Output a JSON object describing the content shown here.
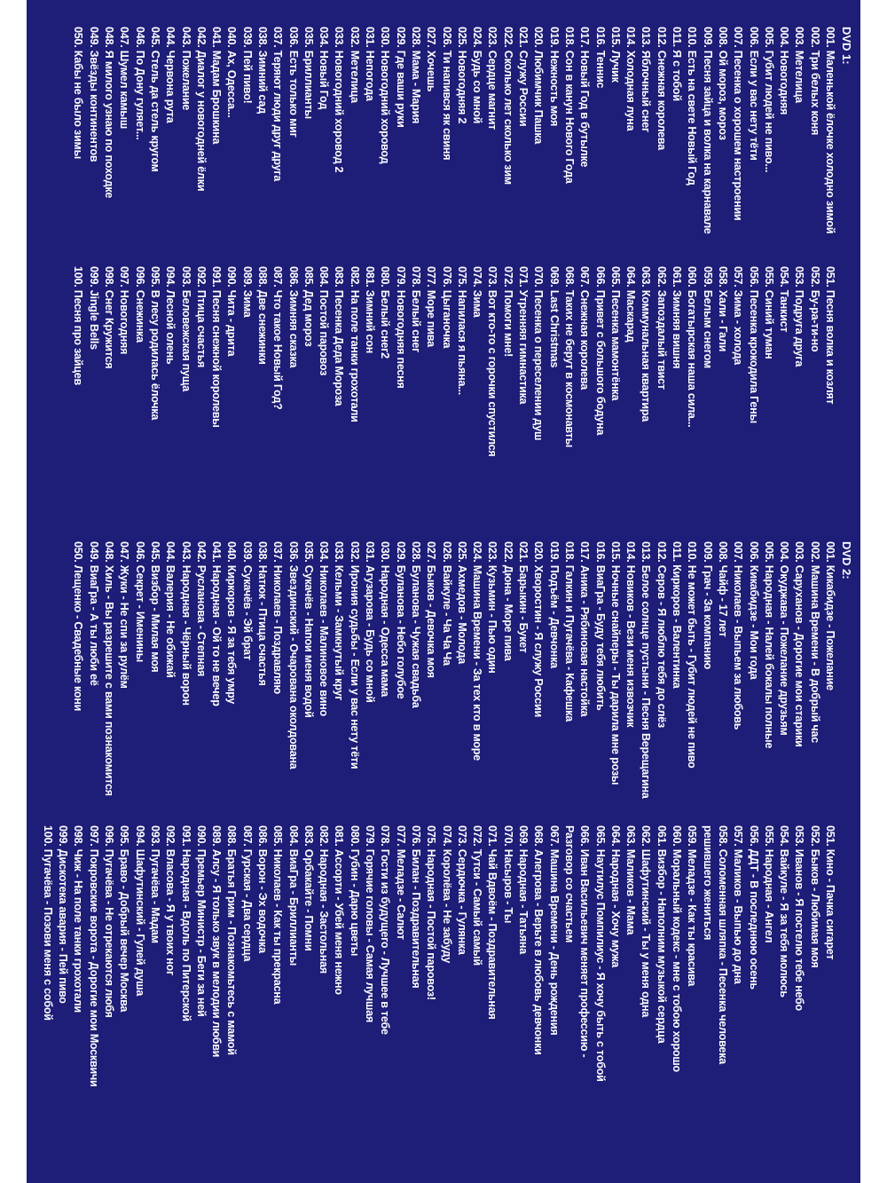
{
  "dvds": [
    {
      "title": "DVD 1:",
      "columns": [
        [
          "001. Маленькой ёлочке холодно зимой",
          "002. Три белых коня",
          "003. Метелица",
          "004. Новогодняя",
          "005. Губит людей не пиво...",
          "006. Если у вас нету тёти",
          "007. Песенка о хорошем настроении",
          "008. Ой мороз, мороз",
          "009. Песня зайца и волка на карнавале",
          "010. Есть на свете Новый Год",
          "011. Я с тобой",
          "012. Снежная королева",
          "013. Яблочный снег",
          "014. Холодная луна",
          "015. Лучик",
          "016. Теннис",
          "017. Новый Год в бутылке",
          "018. Сон в канун Нового Года",
          "019. Нежность моя",
          "020. Любимчик Пашка",
          "021. Служу России",
          "022. Сколько лет сколько зим",
          "023. Сердце магнит",
          "024. Будь со мной",
          "025. Новогодняя 2",
          "026. Ти напився як свиня",
          "027. Хочешь",
          "028. Мама - Мария",
          "029. Где ваши руки",
          "030. Новогодний хоровод",
          "031. Непогода",
          "032. Метелица",
          "033. Новогодний хоровод 2",
          "034. Новый Год",
          "035. Бриллианты",
          "036. Есть только миг",
          "037. Теряют люди друг друга",
          "038. Зимний сад",
          "039. Пей пиво!",
          "040. Ах, Одесса...",
          "041. Мадам Брошкина",
          "042. Диалог у новогодней ёлки",
          "043. Пожелание",
          "044. Червона рута",
          "045. Стель да стель кругом",
          "046. По Дону гуляет...",
          "047. Шумел камыш",
          "048. Я милого узнаю по походке",
          "049. Звёзды континентов",
          "050. Кабы не было зимы"
        ],
        [
          "051. Песня волка и козлят",
          "052. Бу-ра-ти-но",
          "053. Подруга друга",
          "054. Танкист",
          "055. Синий туман",
          "056. Песенка крокодила Гены",
          "057. Зима - холода",
          "058. Хали - Гали",
          "059. Белым снегом",
          "060. Богатырская наша сила...",
          "061. Зимняя вишня",
          "062. Запоздалый твист",
          "063. Коммунальная квартира",
          "064. Маскарад",
          "065. Песенка мамонтёнка",
          "066. Привет с большого бодуна",
          "067. Снежная королева",
          "068. Таких не берут в космонавты",
          "069. Last Christmas",
          "070. Песенка о переселении душ",
          "071. Утренняя гимнастика",
          "072. Помоги мне!",
          "073. Вот кто-то с горочки спустился",
          "074. Зима",
          "075. Напилася я пьяна...",
          "076. Цыганочка",
          "077. Море пива",
          "078. Белый снег",
          "079. Новогодняя песня",
          "080. Белый снег2",
          "081. Зимний сон",
          "082. На поле танки грохотали",
          "083. Песенка Деда Мороза",
          "084. Постой паровоз",
          "085. Дед мороз",
          "086. Зимняя сказка",
          "087. Что такое Новый Год?",
          "088. Две снежинки",
          "089. Зима",
          "090. Чита - дрита",
          "091. Песня снежной королевы",
          "092. Птица счастья",
          "093. Беловежская пуща",
          "094. Лесной олень",
          "095. В лесу родилась ёлочка",
          "096. Снежинка",
          "097. Новогодняя",
          "098. Снег Кружится",
          "099. Jingle Bells",
          "100. Песня про зайцев"
        ]
      ]
    },
    {
      "title": "DVD 2:",
      "columns": [
        [
          "001. Кикабидзе - Пожелание",
          "002. Машина Времени - В добрый час",
          "003. Саруханов - Дорогие мои старики",
          "004. Окуджава - Пожелание друзьям",
          "005. Народная - Налей бокалы полные",
          "006. Кикабидзе - Мои года",
          "007. Николаев - Выпьем за любовь",
          "008. Чайф - 17 лет",
          "009. Грач - За компанию",
          "010. Не может быть - Губит людей не пиво",
          "011. Киркоров - Валентинка",
          "012. Серов - Я люблю тебя до слёз",
          "013. Белое солнце пустыни - Песня Верещагина",
          "014. Новиков - Вези меня извозчик",
          "015. Ночные снайперы - Ты дарила мне розы",
          "016. ВиаГра - Буду тебя любить",
          "017. Аника - Рябиновая настойка",
          "018. Галкин и Пугачёва - Кафешка",
          "019. Подъём - Девчонка",
          "020. Хворостин - Я служу России",
          "021. Барыкин - Букет",
          "022. Дюна - Море пива",
          "023. Кузьмин - Пью один",
          "024. Машина Времени - За тех кто в море",
          "025. Ахмедов - Молода",
          "026. Вайкуле - Ча Ча Ча",
          "027. Быков - Девочка моя",
          "028. Буланова - Чужая свадьба",
          "029. Буланова - Небо голубое",
          "030. Народная - Одесса мама",
          "031. Агузарова - Будь со мной",
          "032. Ирония судьбы - Если у вас нету тёти",
          "033. Кельми - Замкнутый круг",
          "034. Николаев - Малиновое вино",
          "035. Сукачёв - Напои меня водой",
          "036. Звездинский - Очарована околдована",
          "037. Николаев - Поздравляю",
          "038. Натюк - Птица счастья",
          "039. Сукачёв - Эй брат",
          "040. Киркоров - Я за тебя умру",
          "041. Народная - Ой то не вечер",
          "042. Русланова - Степная",
          "043. Народная - Чёрный ворон",
          "044. Валерия - Не обижай",
          "045. Визбор - Милая моя",
          "046. Секрет - Именины",
          "047. Жуки - Не спи за рулём",
          "048. Хиль - Вы разрешите с вами познакомится",
          "049. ВиаГра - А ты люби её",
          "050. Лещенко - Свадебные кони"
        ],
        [
          "051. Кино - Пачка сигарет",
          "052. Быков - Любимая моя",
          "053. Иванов - Я постелю тебе небо",
          "054. Вайкуле - Я за тебя молюсь",
          "055. Народная - Ангел",
          "056. ДДТ - В последнюю осень",
          "057. Маликов - Выпью до дна",
          "058. Соломенная шляпка - Песенка человека решившего жениться",
          "059. Меладзе - Как ты красива",
          "060. Моральный кодекс - мне с тобою хорошо",
          "061. Визбор - Наполним музыкой сердца",
          "062. Шафутинский - Ты у меня одна",
          "063. Маликов - Мама",
          "064. Народная - Хочу мужа",
          "065. Наутилус Помпилиус - Я хочу быть с тобой",
          "066. Иван Васильевич меняет профессию - Разговор со счастьем",
          "067. Машина Времени - День рождения",
          "068. Алегрова - Верьте в любовь девчонки",
          "069. Народная - Татьяна",
          "070. Насыров - Ты",
          "071. Чай Вдвоём - Поздравительная",
          "072. Тутси - Самый самый",
          "073. Сердючка - Гулянка",
          "074. Королёва - Не забуду",
          "075. Народная - Постой паровоз!",
          "076. Билан - Поздравительная",
          "077. Меладзе - Салют",
          "078. Гости из будущего - Лучшее в тебе",
          "079. Горячие головы - Самая лучшая",
          "080. Губин - Дарю цветы",
          "081. Ассорти - Убей меня нежно",
          "082. Народная - Застольная",
          "083. Орбакайте - Помни",
          "084. ВиаГра - Бриллианты",
          "085. Николаев - Как ты прекрасна",
          "086. Ворон - Эх водочка",
          "087. Гурская - Два сердца",
          "088. Братья Грим - Познакомьтесь с мамой",
          "089. Алсу - Я только звук в мелодии любви",
          "090. Премьер Министр - Беги за ней",
          "091. Народная - Вдоль по Питерской",
          "092. Власова - Я у твоих ног",
          "093. Пугачёва - Мадам",
          "094. Шафутинский - Гулей душа",
          "095. Браво - Добрый вечер Москва",
          "096. Пугачёва - Не отрекаются любя",
          "097. Покровские ворота - Дорогие мои Москвичи",
          "098. Чиж - На поле танки грохотали",
          "099. Дискотека авария - Пей пиво",
          "100. Пугачёва - Позови меня с собой"
        ]
      ]
    }
  ]
}
